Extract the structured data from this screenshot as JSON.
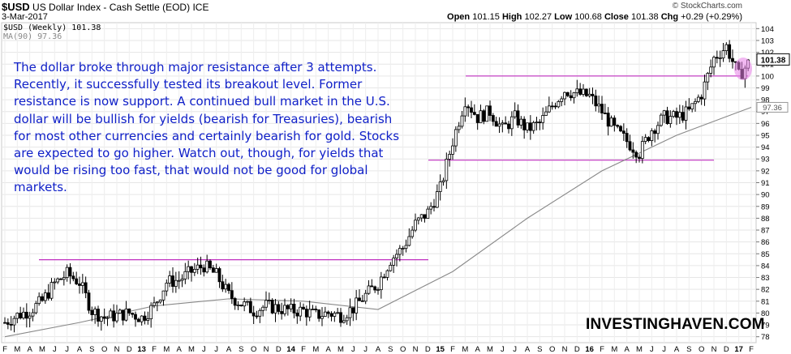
{
  "header": {
    "symbol": "$USD",
    "name": "US Dollar Index - Cash Settle (EOD)",
    "exchange": "ICE",
    "date": "3-Mar-2017",
    "source": "© StockCharts.com",
    "ohlc_label_open": "Open",
    "open": "101.15",
    "ohlc_label_high": "High",
    "high": "102.27",
    "ohlc_label_low": "Low",
    "low": "100.68",
    "ohlc_label_close": "Close",
    "close": "101.38",
    "ohlc_label_chg": "Chg",
    "chg": "+0.29 (+0.29%)"
  },
  "legend": {
    "series_label": "$USD (Weekly) 101.38",
    "ma_label": "MA(90) 97.36"
  },
  "annotation": "The dollar broke through major resistance after 3 attempts. Recently, it successfully tested its breakout level. Former resistance is now support. A continued bull market in the U.S. dollar will be bullish for yields (bearish for Treasuries), bearish for most other currencies and certainly bearish for gold. Stocks are expected to go higher. Watch out, though, for yields that would be rising too fast, that would not be good for global markets.",
  "brand": "INVESTINGHAVEN.COM",
  "chart_data": {
    "type": "line",
    "title": "US Dollar Index - Cash Settle (EOD)",
    "ylim": [
      77.5,
      104.5
    ],
    "y_ticks": [
      78,
      79,
      80,
      81,
      82,
      83,
      84,
      85,
      86,
      87,
      88,
      89,
      90,
      91,
      92,
      93,
      94,
      95,
      96,
      97,
      98,
      99,
      100,
      101,
      102,
      103,
      104
    ],
    "x_tick_labels": [
      "F",
      "M",
      "A",
      "M",
      "J",
      "J",
      "A",
      "S",
      "O",
      "N",
      "D",
      "13",
      "F",
      "M",
      "A",
      "M",
      "J",
      "J",
      "A",
      "S",
      "O",
      "N",
      "D",
      "14",
      "F",
      "M",
      "A",
      "M",
      "J",
      "J",
      "A",
      "S",
      "O",
      "N",
      "D",
      "15",
      "F",
      "M",
      "A",
      "M",
      "J",
      "J",
      "A",
      "S",
      "O",
      "N",
      "D",
      "16",
      "F",
      "M",
      "A",
      "M",
      "J",
      "J",
      "A",
      "S",
      "O",
      "N",
      "D",
      "17",
      "F"
    ],
    "last_price_label": "101.38",
    "ma_value_label": "97.36",
    "grid": true,
    "series": [
      {
        "name": "$USD (Weekly) 101.38",
        "color": "#000000",
        "x": [
          0,
          1,
          2,
          3,
          4,
          5,
          6,
          7,
          8,
          9,
          10,
          11,
          12,
          13,
          14,
          15,
          16,
          17,
          18,
          19,
          20,
          21,
          22,
          23,
          24,
          25,
          26,
          27,
          28,
          29,
          30,
          31,
          32,
          33,
          34,
          35,
          36,
          37,
          38,
          39,
          40,
          41,
          42,
          43,
          44,
          45,
          46,
          47,
          48,
          49,
          50,
          51,
          52,
          53,
          54,
          55,
          56,
          57,
          58,
          59,
          60
        ],
        "values": [
          79.2,
          79.8,
          80.2,
          81.0,
          82.5,
          83.3,
          82.6,
          80.2,
          79.6,
          79.8,
          80.0,
          79.6,
          80.6,
          82.6,
          82.8,
          83.5,
          84.0,
          83.2,
          81.5,
          80.8,
          80.2,
          80.6,
          80.4,
          80.2,
          80.2,
          79.8,
          80.0,
          79.8,
          80.4,
          81.5,
          82.5,
          84.5,
          85.5,
          87.5,
          88.5,
          90.5,
          94.5,
          98.0,
          96.5,
          97.0,
          95.5,
          96.5,
          95.5,
          96.0,
          97.5,
          98.8,
          98.5,
          98.3,
          97.0,
          95.5,
          94.5,
          93.5,
          95.5,
          96.5,
          96.5,
          97.0,
          98.5,
          101.5,
          102.5,
          100.0,
          101.4
        ]
      },
      {
        "name": "MA(90) 97.36",
        "color": "#888888",
        "x": [
          0,
          6,
          12,
          18,
          24,
          30,
          36,
          42,
          48,
          54,
          60
        ],
        "values": [
          78.0,
          79.2,
          80.6,
          81.2,
          81.0,
          80.3,
          83.5,
          88.0,
          92.0,
          95.0,
          97.36
        ]
      }
    ],
    "annotations": {
      "resistance_line_1": {
        "y": 84.5,
        "color": "#c030c0"
      },
      "resistance_line_2": {
        "y": 100.0,
        "color": "#c030c0"
      },
      "support_line": {
        "y": 92.9,
        "color": "#c030c0"
      }
    }
  }
}
